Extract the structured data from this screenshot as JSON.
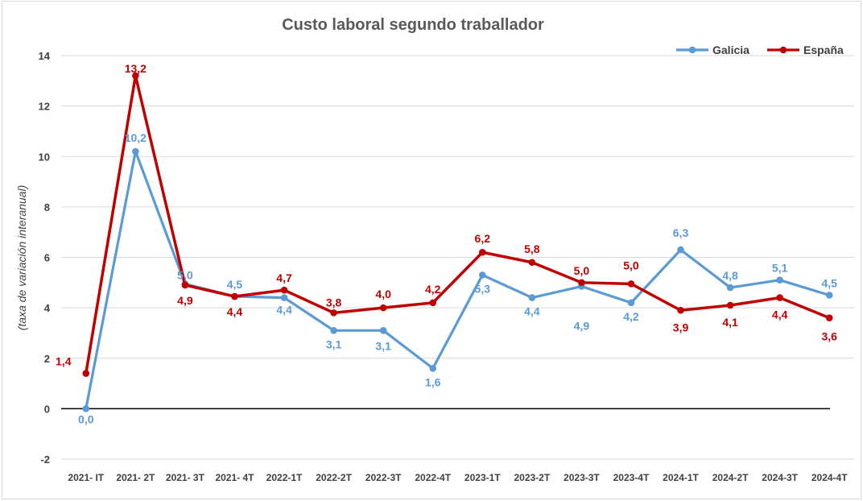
{
  "chart_data": {
    "type": "line",
    "title": "Custo laboral segundo traballador",
    "ylabel": "(taxa de variación interanual)",
    "xlabel": "",
    "ylim": [
      -2,
      14
    ],
    "yticks": [
      "-2",
      "0",
      "2",
      "4",
      "6",
      "8",
      "10",
      "12",
      "14"
    ],
    "grid": true,
    "legend_position": "top-right",
    "categories": [
      "2021- IT",
      "2021- 2T",
      "2021- 3T",
      "2021- 4T",
      "2022-1T",
      "2022-2T",
      "2022-3T",
      "2022-4T",
      "2023-1T",
      "2023-2T",
      "2023-3T",
      "2023-4T",
      "2024-1T",
      "2024-2T",
      "2024-3T",
      "2024-4T"
    ],
    "series": [
      {
        "name": "Galicia",
        "color": "#5b9bd5",
        "values": [
          0.0,
          10.2,
          4.95,
          4.45,
          4.4,
          3.1,
          3.1,
          1.6,
          5.3,
          4.4,
          4.85,
          4.2,
          6.3,
          4.8,
          5.1,
          4.5
        ],
        "labels": [
          "0,0",
          "10,2",
          "5,0",
          "4,5",
          "4,4",
          "3,1",
          "3,1",
          "1,6",
          "5,3",
          "4,4",
          "4,9",
          "4,2",
          "6,3",
          "4,8",
          "5,1",
          "4,5"
        ]
      },
      {
        "name": "España",
        "color": "#c00000",
        "values": [
          1.4,
          13.2,
          4.9,
          4.45,
          4.7,
          3.8,
          4.0,
          4.2,
          6.2,
          5.8,
          5.0,
          4.95,
          3.9,
          4.1,
          4.4,
          3.6
        ],
        "labels": [
          "1,4",
          "13,2",
          "4,9",
          "4,4",
          "4,7",
          "3,8",
          "4,0",
          "4,2",
          "6,2",
          "5,8",
          "5,0",
          "5,0",
          "3,9",
          "4,1",
          "4,4",
          "3,6"
        ]
      }
    ]
  }
}
